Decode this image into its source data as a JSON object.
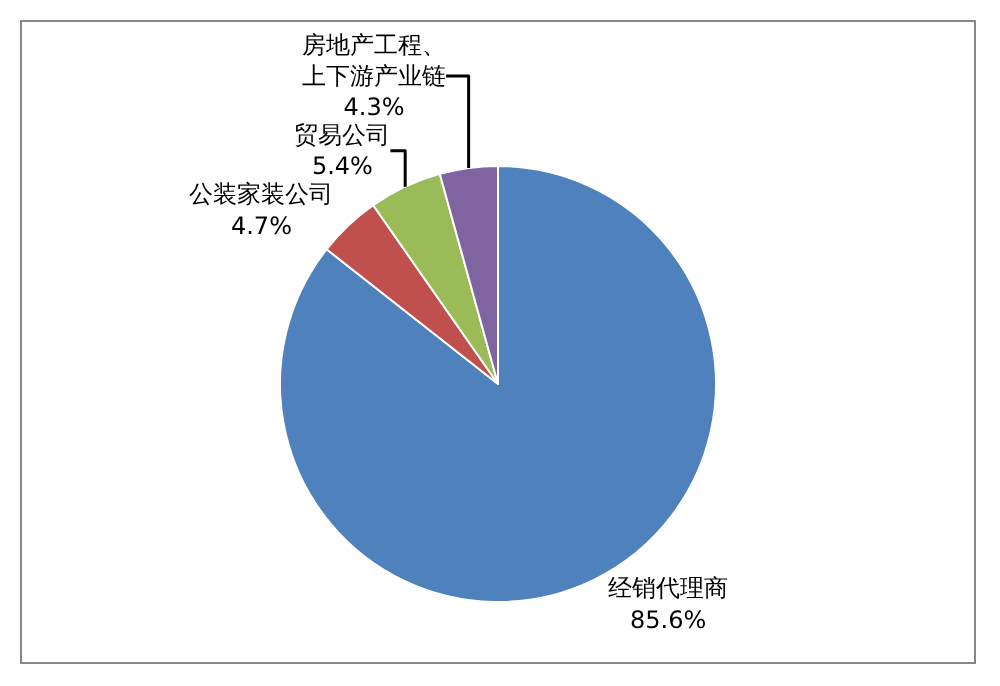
{
  "chart_data": {
    "type": "pie",
    "categories": [
      "经销代理商",
      "公装家装公司",
      "贸易公司",
      "房地产工程、上下游产业链"
    ],
    "values": [
      85.6,
      4.7,
      5.4,
      4.3
    ],
    "value_labels": [
      "85.6%",
      "4.7%",
      "5.4%",
      "4.3%"
    ],
    "colors": [
      "#4f81bd",
      "#c0504d",
      "#9bbb59",
      "#8064a2"
    ],
    "legend": false
  }
}
